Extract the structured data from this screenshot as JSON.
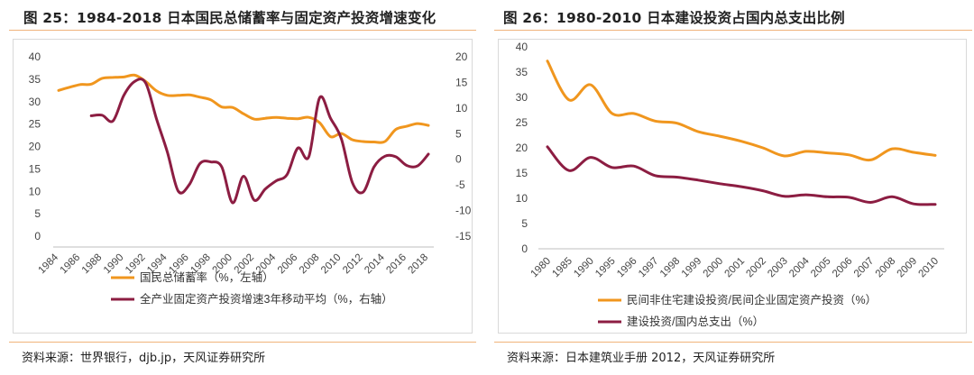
{
  "left": {
    "title": "图 25：1984-2018 日本国民总储蓄率与固定资产投资增速变化",
    "source": "资料来源：世界银行，djb.jp，天风证券研究所",
    "chart_data": {
      "type": "line",
      "x": [
        1984,
        1985,
        1986,
        1987,
        1988,
        1989,
        1990,
        1991,
        1992,
        1993,
        1994,
        1995,
        1996,
        1997,
        1998,
        1999,
        2000,
        2001,
        2002,
        2003,
        2004,
        2005,
        2006,
        2007,
        2008,
        2009,
        2010,
        2011,
        2012,
        2013,
        2014,
        2015,
        2016,
        2017,
        2018
      ],
      "x_tick_labels": [
        "1984",
        "1986",
        "1988",
        "1990",
        "1992",
        "1994",
        "1996",
        "1998",
        "2000",
        "2002",
        "2004",
        "2006",
        "2008",
        "2010",
        "2012",
        "2014",
        "2016",
        "2018"
      ],
      "left_axis": {
        "ylim": [
          0,
          40
        ],
        "ticks": [
          "0",
          "5",
          "10",
          "15",
          "20",
          "25",
          "30",
          "35",
          "40"
        ]
      },
      "right_axis": {
        "ylim": [
          -15,
          20
        ],
        "ticks": [
          "-15",
          "-10",
          "-5",
          "0",
          "5",
          "10",
          "15",
          "20"
        ]
      },
      "series": [
        {
          "name": "国民总储蓄率（%，左轴）",
          "axis": "left",
          "color": "#f0961e",
          "values": [
            32.5,
            33.2,
            33.8,
            33.9,
            35.2,
            35.4,
            35.5,
            35.9,
            34.5,
            32.4,
            31.4,
            31.4,
            31.5,
            31.0,
            30.4,
            28.8,
            28.7,
            27.3,
            26.1,
            26.3,
            26.5,
            26.3,
            26.2,
            26.5,
            25.3,
            22.2,
            22.9,
            21.5,
            21.1,
            21.0,
            21.1,
            23.8,
            24.5,
            25.1,
            24.7
          ]
        },
        {
          "name": "全产业固定资产投资增速3年移动平均（%，右轴）",
          "axis": "right",
          "color": "#8c1d42",
          "values": [
            null,
            null,
            null,
            8.5,
            8.6,
            7.5,
            12.5,
            15.2,
            14.9,
            7.9,
            1.4,
            -6.2,
            -5.0,
            -0.8,
            -0.5,
            -1.5,
            -8.5,
            -3.3,
            -8.0,
            -5.8,
            -4.2,
            -3.0,
            2.2,
            0.5,
            12.0,
            8.0,
            4.0,
            -4.5,
            -6.4,
            -1.5,
            0.6,
            0.5,
            -1.2,
            -1.3,
            1.0
          ]
        }
      ]
    }
  },
  "right": {
    "title": "图 26：1980-2010 日本建设投资占国内总支出比例",
    "source": "资料来源：日本建筑业手册 2012，天风证券研究所",
    "chart_data": {
      "type": "line",
      "categories": [
        "1980",
        "1985",
        "1990",
        "1995",
        "1996",
        "1997",
        "1998",
        "1999",
        "2000",
        "2001",
        "2002",
        "2003",
        "2004",
        "2005",
        "2006",
        "2007",
        "2008",
        "2009",
        "2010"
      ],
      "ylim": [
        0,
        40
      ],
      "y_ticks": [
        "0",
        "5",
        "10",
        "15",
        "20",
        "25",
        "30",
        "35",
        "40"
      ],
      "series": [
        {
          "name": "民间非住宅建设投资/民间企业固定资产投资（%）",
          "color": "#f0961e",
          "values": [
            37.2,
            29.5,
            32.5,
            26.8,
            26.8,
            25.3,
            24.9,
            23.2,
            22.3,
            21.3,
            20.0,
            18.4,
            19.3,
            19.0,
            18.6,
            17.6,
            19.8,
            19.1,
            18.5
          ]
        },
        {
          "name": "建设投资/国内总支出（%）",
          "color": "#8c1d42",
          "values": [
            20.2,
            15.5,
            18.1,
            16.1,
            16.4,
            14.5,
            14.2,
            13.6,
            12.9,
            12.3,
            11.5,
            10.4,
            10.7,
            10.3,
            10.2,
            9.2,
            10.3,
            8.9,
            8.8
          ]
        }
      ]
    }
  }
}
